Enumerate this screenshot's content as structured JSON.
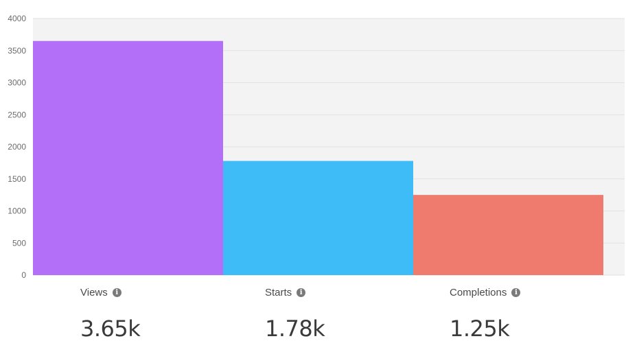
{
  "chart_data": {
    "type": "bar",
    "categories": [
      "Views",
      "Starts",
      "Completions"
    ],
    "values": [
      3650,
      1780,
      1250
    ],
    "ylim": [
      0,
      4000
    ],
    "yticks": [
      0,
      500,
      1000,
      1500,
      2000,
      2500,
      3000,
      3500,
      4000
    ],
    "grid": true,
    "colors": [
      "#b46ff9",
      "#3dbcf8",
      "#ee7b6e"
    ],
    "plot_background": "#f4f3f3",
    "gridline_color": "#e2e2e2"
  },
  "metrics": [
    {
      "label": "Views",
      "value": "3.65k",
      "icon": "info-icon"
    },
    {
      "label": "Starts",
      "value": "1.78k",
      "icon": "info-icon"
    },
    {
      "label": "Completions",
      "value": "1.25k",
      "icon": "info-icon"
    }
  ]
}
